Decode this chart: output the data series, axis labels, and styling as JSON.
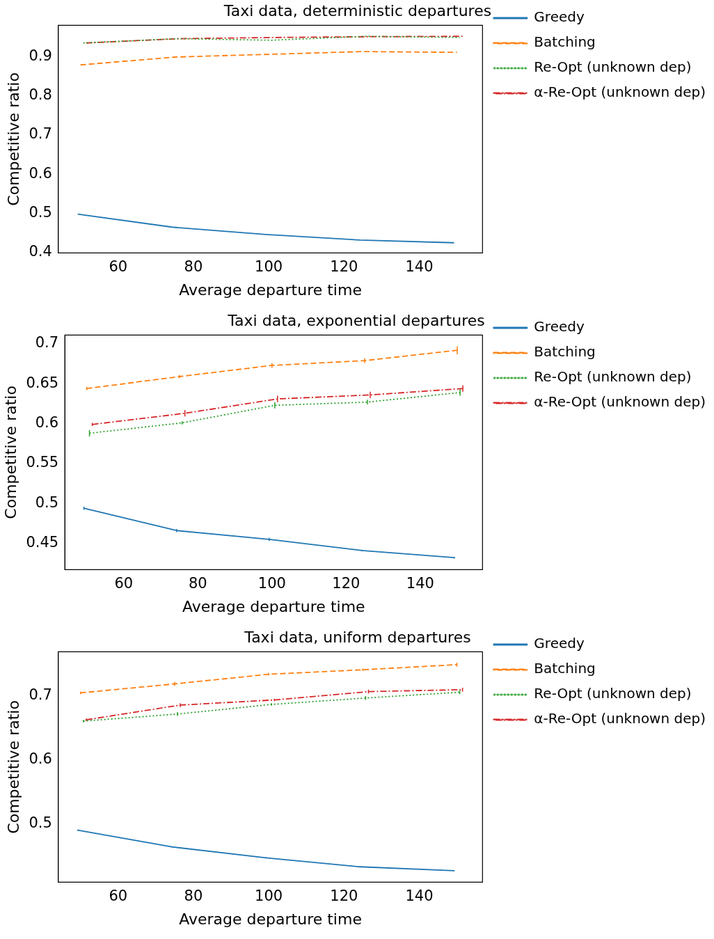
{
  "chart_data": [
    {
      "type": "line",
      "title": "Taxi data, deterministic departures",
      "xlabel": "Average departure time",
      "ylabel": "Competitive ratio",
      "xlim": [
        44.1,
        156.8
      ],
      "xticks": [
        60,
        80,
        100,
        120,
        140
      ],
      "ylim": [
        0.399,
        0.98
      ],
      "yticks": [
        0.4,
        0.5,
        0.6,
        0.7,
        0.8,
        0.9
      ],
      "grid": false,
      "legend": "right",
      "series": [
        {
          "name": "Greedy",
          "color": "#1f77b4",
          "line_style": "solid",
          "x": [
            49.25,
            74.25,
            99.25,
            124.25,
            149.25
          ],
          "values": [
            0.498,
            0.465,
            0.446,
            0.432,
            0.425
          ]
        },
        {
          "name": "Batching",
          "color": "#ff7f0e",
          "line_style": "dashed",
          "x": [
            50,
            75,
            100,
            125,
            150
          ],
          "values": [
            0.879,
            0.899,
            0.906,
            0.913,
            0.911
          ]
        },
        {
          "name": "Re-Opt (unknown dep)",
          "color": "#2ca02c",
          "line_style": "dotted",
          "x": [
            50.75,
            75.75,
            100.75,
            125.75,
            150.75
          ],
          "values": [
            0.935,
            0.946,
            0.942,
            0.952,
            0.949
          ]
        },
        {
          "name": "α-Re-Opt (unknown dep)",
          "color": "#d62728",
          "line_style": "dashdot",
          "x": [
            51.5,
            76.5,
            101.5,
            126.5,
            151.5
          ],
          "values": [
            0.935,
            0.946,
            0.949,
            0.951,
            0.952
          ]
        }
      ]
    },
    {
      "type": "line",
      "title": "Taxi data, exponential departures",
      "xlabel": "Average departure time",
      "ylabel": "Competitive ratio",
      "xlim": [
        44.1,
        156.8
      ],
      "xticks": [
        60,
        80,
        100,
        120,
        140
      ],
      "ylim": [
        0.417,
        0.711
      ],
      "yticks": [
        0.45,
        0.5,
        0.55,
        0.6,
        0.65,
        0.7
      ],
      "grid": false,
      "legend": "right",
      "series": [
        {
          "name": "Greedy",
          "color": "#1f77b4",
          "line_style": "solid",
          "x": [
            49.25,
            74.25,
            99.25,
            124.25,
            149.25
          ],
          "values": [
            0.494,
            0.466,
            0.455,
            0.441,
            0.432
          ],
          "errors": [
            0.002,
            0.002,
            0.002,
            0.001,
            0.001
          ]
        },
        {
          "name": "Batching",
          "color": "#ff7f0e",
          "line_style": "dashed",
          "x": [
            50,
            75,
            100,
            125,
            150
          ],
          "values": [
            0.644,
            0.659,
            0.673,
            0.679,
            0.692
          ],
          "errors": [
            0.002,
            0.002,
            0.003,
            0.003,
            0.005
          ]
        },
        {
          "name": "Re-Opt (unknown dep)",
          "color": "#2ca02c",
          "line_style": "dotted",
          "x": [
            50.75,
            75.75,
            100.75,
            125.75,
            150.75
          ],
          "values": [
            0.588,
            0.601,
            0.623,
            0.627,
            0.639
          ],
          "errors": [
            0.004,
            0.002,
            0.004,
            0.003,
            0.004
          ]
        },
        {
          "name": "α-Re-Opt (unknown dep)",
          "color": "#d62728",
          "line_style": "dashdot",
          "x": [
            51.5,
            76.5,
            101.5,
            126.5,
            151.5
          ],
          "values": [
            0.599,
            0.613,
            0.631,
            0.636,
            0.644
          ],
          "errors": [
            0.002,
            0.004,
            0.004,
            0.004,
            0.004
          ]
        }
      ]
    },
    {
      "type": "line",
      "title": "Taxi data, uniform departures",
      "xlabel": "Average departure time",
      "ylabel": "Competitive ratio",
      "xlim": [
        44.1,
        156.8
      ],
      "xticks": [
        60,
        80,
        100,
        120,
        140
      ],
      "ylim": [
        0.409,
        0.768
      ],
      "yticks": [
        0.5,
        0.6,
        0.7
      ],
      "grid": false,
      "legend": "right",
      "series": [
        {
          "name": "Greedy",
          "color": "#1f77b4",
          "line_style": "solid",
          "x": [
            49.25,
            74.25,
            99.25,
            124.25,
            149.25
          ],
          "values": [
            0.49,
            0.464,
            0.447,
            0.433,
            0.427
          ],
          "errors": [
            0.001,
            0.001,
            0.001,
            0.001,
            0.001
          ]
        },
        {
          "name": "Batching",
          "color": "#ff7f0e",
          "line_style": "dashed",
          "x": [
            50,
            75,
            100,
            125,
            150
          ],
          "values": [
            0.704,
            0.718,
            0.733,
            0.74,
            0.748
          ],
          "errors": [
            0.002,
            0.003,
            0.002,
            0.002,
            0.003
          ]
        },
        {
          "name": "Re-Opt (unknown dep)",
          "color": "#2ca02c",
          "line_style": "dotted",
          "x": [
            50.75,
            75.75,
            100.75,
            125.75,
            150.75
          ],
          "values": [
            0.66,
            0.671,
            0.686,
            0.696,
            0.705
          ],
          "errors": [
            0.002,
            0.003,
            0.002,
            0.003,
            0.003
          ]
        },
        {
          "name": "α-Re-Opt (unknown dep)",
          "color": "#d62728",
          "line_style": "dashdot",
          "x": [
            51.5,
            76.5,
            101.5,
            126.5,
            151.5
          ],
          "values": [
            0.662,
            0.685,
            0.693,
            0.706,
            0.709
          ],
          "errors": [
            0.002,
            0.003,
            0.002,
            0.003,
            0.003
          ]
        }
      ]
    }
  ]
}
